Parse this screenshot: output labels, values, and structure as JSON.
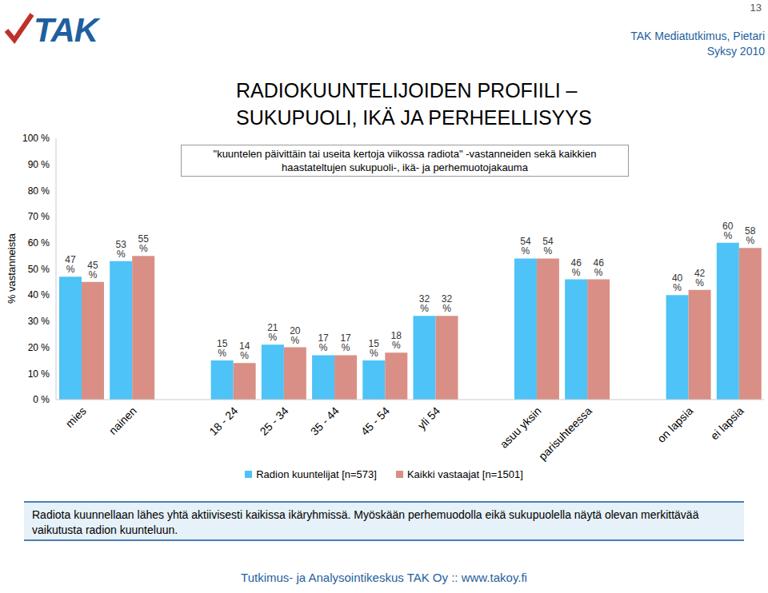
{
  "chart_data": {
    "type": "bar",
    "title": [
      "RADIOKUUNTELIJOIDEN PROFIILI –",
      "SUKUPUOLI, IKÄ JA PERHEELLISYYS"
    ],
    "subtitle": "\"kuuntelen päivittäin tai useita kertoja viikossa radiota\" -vastanneiden sekä kaikkien haastateltujen sukupuoli-, ikä- ja perhemuotojakauma",
    "header": {
      "logo": "TAK",
      "source": "TAK Mediatutkimus, Pietari",
      "period": "Syksy 2010",
      "page": "13"
    },
    "y_label": "% vastanneista",
    "note": "Radiota kuunnellaan lähes yhtä aktiivisesti kaikissa ikäryhmissä. Myöskään perhemuodolla eikä sukupuolella näytä olevan merkittävää vaikutusta radion kuunteluun.",
    "footer": "Tutkimus- ja Analysointikeskus TAK Oy :: www.takoy.fi",
    "categories": [
      "mies",
      "nainen",
      null,
      "18 - 24",
      "25 - 34",
      "35 - 44",
      "45 - 54",
      "yli 54",
      null,
      "asuu yksin",
      "parisuhteessa",
      null,
      "on lapsia",
      "ei lapsia"
    ],
    "series": [
      {
        "name": "Radion kuuntelijat [n=573]",
        "color": "#4dc3f7",
        "values": [
          47,
          53,
          null,
          15,
          21,
          17,
          15,
          32,
          null,
          54,
          46,
          null,
          40,
          60
        ],
        "value_labels": [
          "47 %",
          "53 %",
          null,
          "15 %",
          "21 %",
          "17 %",
          "15 %",
          "32 %",
          null,
          "54 %",
          "46 %",
          null,
          "40 %",
          "60 %"
        ]
      },
      {
        "name": "Kaikki vastaajat [n=1501]",
        "color": "#d98f86",
        "values": [
          45,
          55,
          null,
          14,
          20,
          17,
          18,
          32,
          null,
          54,
          46,
          null,
          42,
          58
        ],
        "value_labels": [
          "45 %",
          "55 %",
          null,
          "14 %",
          "20 %",
          "17 %",
          "18 %",
          "32 %",
          null,
          "54 %",
          "46 %",
          null,
          "42 %",
          "58 %"
        ]
      }
    ],
    "ylim": [
      0,
      100
    ],
    "yticks": [
      {
        "value": 0,
        "label": "0 %"
      },
      {
        "value": 10,
        "label": "10 %"
      },
      {
        "value": 20,
        "label": "20 %"
      },
      {
        "value": 30,
        "label": "30 %"
      },
      {
        "value": 40,
        "label": "40 %"
      },
      {
        "value": 50,
        "label": "50 %"
      },
      {
        "value": 60,
        "label": "60 %"
      },
      {
        "value": 70,
        "label": "70 %"
      },
      {
        "value": 80,
        "label": "80 %"
      },
      {
        "value": 90,
        "label": "90 %"
      },
      {
        "value": 100,
        "label": "100 %"
      }
    ],
    "grid": false,
    "legend": "bottom",
    "data_labels": true
  }
}
